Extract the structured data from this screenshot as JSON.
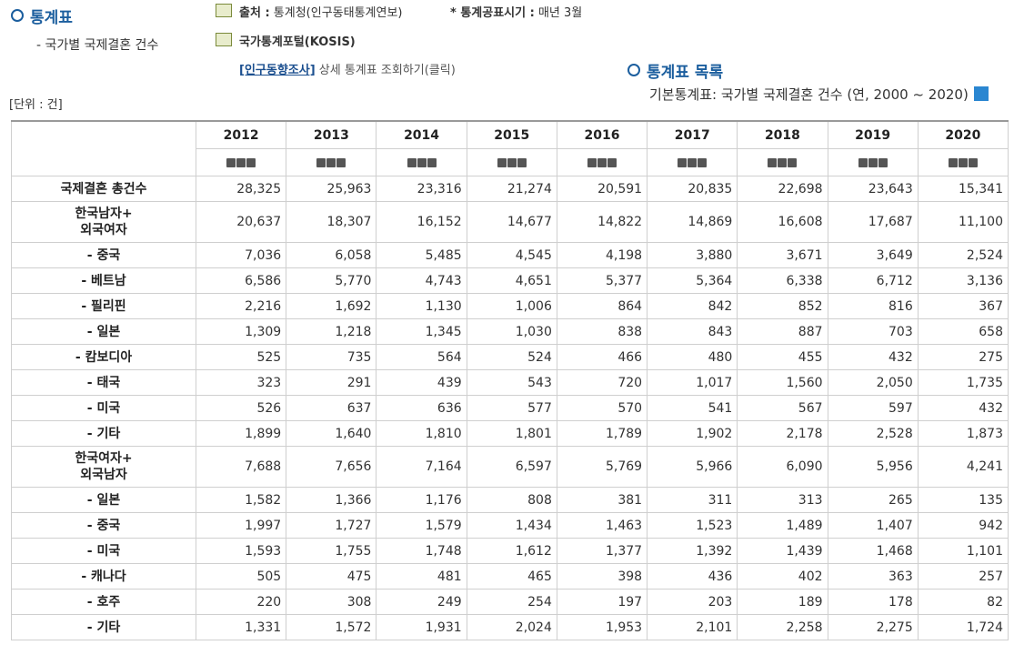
{
  "header": {
    "title": "통계표",
    "subtitle": "- 국가별 국제결혼 건수"
  },
  "source": {
    "label": "출처 :",
    "value": "통계청(인구동태통계연보)",
    "release_label": "* 통계공표시기 :",
    "release_value": "매년 3월",
    "portal": "국가통계포털(KOSIS)",
    "link": "[인구동향조사]",
    "link_text": "상세 통계표 조회하기(클릭)"
  },
  "list": {
    "title": "통계표 목록",
    "description": "기본통계표: 국가별 국제결혼 건수 (연, 2000 ~ 2020)"
  },
  "unit": "[단위 : 건]",
  "table": {
    "columns": [
      "2012",
      "2013",
      "2014",
      "2015",
      "2016",
      "2017",
      "2018",
      "2019",
      "2020"
    ],
    "rows": [
      {
        "label": "국제결혼 총건수",
        "values": [
          "28,325",
          "25,963",
          "23,316",
          "21,274",
          "20,591",
          "20,835",
          "22,698",
          "23,643",
          "15,341"
        ]
      },
      {
        "label": "한국남자+\n외국여자",
        "values": [
          "20,637",
          "18,307",
          "16,152",
          "14,677",
          "14,822",
          "14,869",
          "16,608",
          "17,687",
          "11,100"
        ]
      },
      {
        "label": "- 중국",
        "values": [
          "7,036",
          "6,058",
          "5,485",
          "4,545",
          "4,198",
          "3,880",
          "3,671",
          "3,649",
          "2,524"
        ]
      },
      {
        "label": "- 베트남",
        "values": [
          "6,586",
          "5,770",
          "4,743",
          "4,651",
          "5,377",
          "5,364",
          "6,338",
          "6,712",
          "3,136"
        ]
      },
      {
        "label": "- 필리핀",
        "values": [
          "2,216",
          "1,692",
          "1,130",
          "1,006",
          "864",
          "842",
          "852",
          "816",
          "367"
        ]
      },
      {
        "label": "- 일본",
        "values": [
          "1,309",
          "1,218",
          "1,345",
          "1,030",
          "838",
          "843",
          "887",
          "703",
          "658"
        ]
      },
      {
        "label": "- 캄보디아",
        "values": [
          "525",
          "735",
          "564",
          "524",
          "466",
          "480",
          "455",
          "432",
          "275"
        ]
      },
      {
        "label": "- 태국",
        "values": [
          "323",
          "291",
          "439",
          "543",
          "720",
          "1,017",
          "1,560",
          "2,050",
          "1,735"
        ]
      },
      {
        "label": "- 미국",
        "values": [
          "526",
          "637",
          "636",
          "577",
          "570",
          "541",
          "567",
          "597",
          "432"
        ]
      },
      {
        "label": "- 기타",
        "values": [
          "1,899",
          "1,640",
          "1,810",
          "1,801",
          "1,789",
          "1,902",
          "2,178",
          "2,528",
          "1,873"
        ]
      },
      {
        "label": "한국여자+\n외국남자",
        "values": [
          "7,688",
          "7,656",
          "7,164",
          "6,597",
          "5,769",
          "5,966",
          "6,090",
          "5,956",
          "4,241"
        ]
      },
      {
        "label": "- 일본",
        "values": [
          "1,582",
          "1,366",
          "1,176",
          "808",
          "381",
          "311",
          "313",
          "265",
          "135"
        ]
      },
      {
        "label": "- 중국",
        "values": [
          "1,997",
          "1,727",
          "1,579",
          "1,434",
          "1,463",
          "1,523",
          "1,489",
          "1,407",
          "942"
        ]
      },
      {
        "label": "- 미국",
        "values": [
          "1,593",
          "1,755",
          "1,748",
          "1,612",
          "1,377",
          "1,392",
          "1,439",
          "1,468",
          "1,101"
        ]
      },
      {
        "label": "- 캐나다",
        "values": [
          "505",
          "475",
          "481",
          "465",
          "398",
          "436",
          "402",
          "363",
          "257"
        ]
      },
      {
        "label": "- 호주",
        "values": [
          "220",
          "308",
          "249",
          "254",
          "197",
          "203",
          "189",
          "178",
          "82"
        ]
      },
      {
        "label": "- 기타",
        "values": [
          "1,331",
          "1,572",
          "1,931",
          "2,024",
          "1,953",
          "2,101",
          "2,258",
          "2,275",
          "1,724"
        ]
      }
    ]
  }
}
